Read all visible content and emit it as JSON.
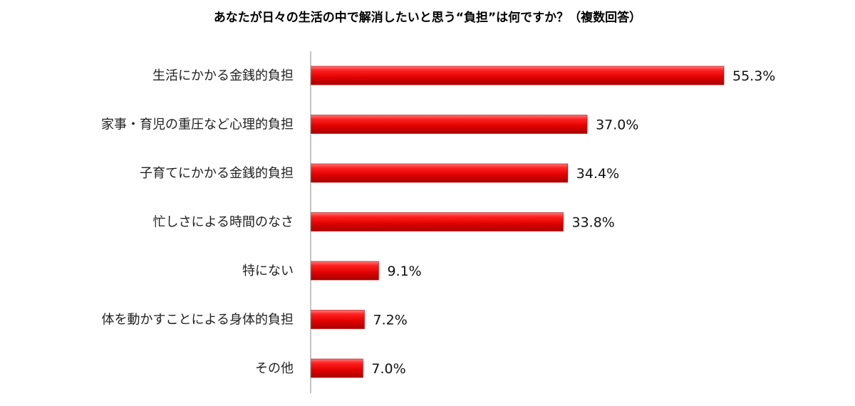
{
  "chart_data": {
    "type": "bar",
    "orientation": "horizontal",
    "title": "あなたが日々の生活の中で解消したいと思う“負担”は何ですか？（複数回答）",
    "categories": [
      "生活にかかる金銭的負担",
      "家事・育児の重圧など心理的負担",
      "子育てにかかる金銭的負担",
      "忙しさによる時間のなさ",
      "特にない",
      "体を動かすことによる身体的負担",
      "その他"
    ],
    "values": [
      55.3,
      37.0,
      34.4,
      33.8,
      9.1,
      7.2,
      7.0
    ],
    "value_labels": [
      "55.3%",
      "37.0%",
      "34.4%",
      "33.8%",
      "9.1%",
      "7.2%",
      "7.0%"
    ],
    "unit": "%",
    "xlim": [
      0,
      100
    ],
    "grid": false,
    "legend": "none",
    "bar_color": "#e60000"
  }
}
